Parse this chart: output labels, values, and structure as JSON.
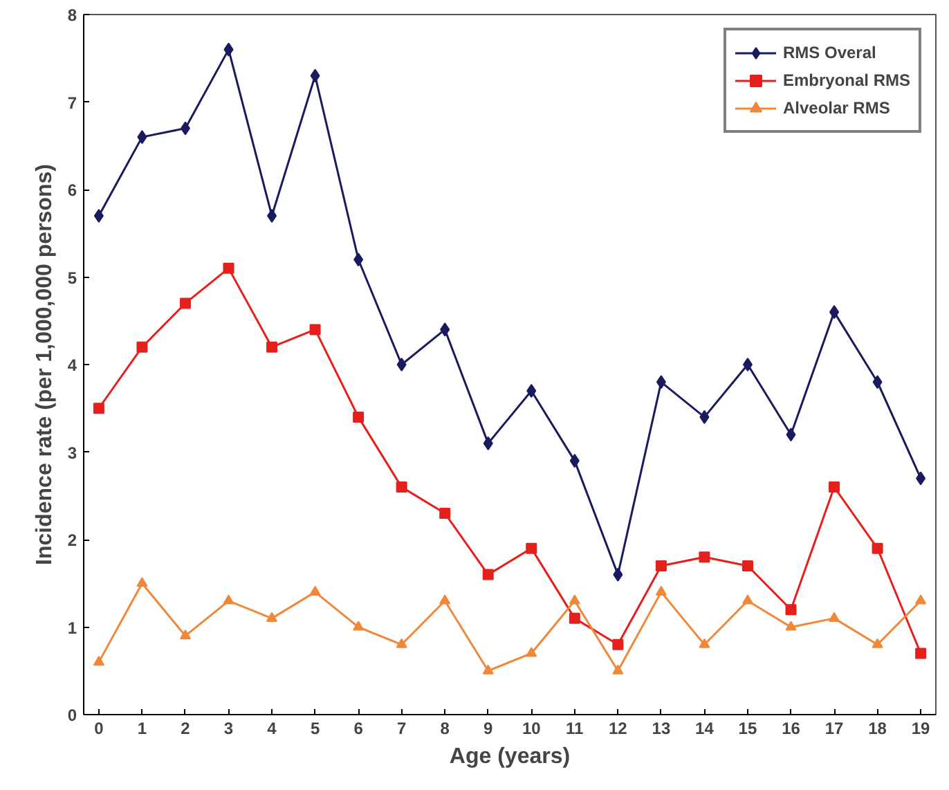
{
  "chart_data": {
    "type": "line",
    "xlabel": "Age (years)",
    "ylabel": "Incidence rate (per 1,000,000 persons)",
    "x": [
      0,
      1,
      2,
      3,
      4,
      5,
      6,
      7,
      8,
      9,
      10,
      11,
      12,
      13,
      14,
      15,
      16,
      17,
      18,
      19
    ],
    "series": [
      {
        "name": "RMS Overal",
        "color": "#1a1a5e",
        "marker": "diamond",
        "values": [
          5.7,
          6.6,
          6.7,
          7.6,
          5.7,
          7.3,
          5.2,
          4.0,
          4.4,
          3.1,
          3.7,
          2.9,
          1.6,
          3.8,
          3.4,
          4.0,
          3.2,
          4.6,
          3.8,
          2.7
        ]
      },
      {
        "name": "Embryonal RMS",
        "color": "#e5201c",
        "marker": "square",
        "values": [
          3.5,
          4.2,
          4.7,
          5.1,
          4.2,
          4.4,
          3.4,
          2.6,
          2.3,
          1.6,
          1.9,
          1.1,
          0.8,
          1.7,
          1.8,
          1.7,
          1.2,
          2.6,
          1.9,
          0.7
        ]
      },
      {
        "name": "Alveolar RMS",
        "color": "#f0883a",
        "marker": "triangle",
        "values": [
          0.6,
          1.5,
          0.9,
          1.3,
          1.1,
          1.4,
          1.0,
          0.8,
          1.3,
          0.5,
          0.7,
          1.3,
          0.5,
          1.4,
          0.8,
          1.3,
          1.0,
          1.1,
          0.8,
          1.3
        ]
      }
    ],
    "xlim": [
      -0.35,
      19.35
    ],
    "xticks": [
      0,
      1,
      2,
      3,
      4,
      5,
      6,
      7,
      8,
      9,
      10,
      11,
      12,
      13,
      14,
      15,
      16,
      17,
      18,
      19
    ],
    "ylim": [
      0,
      8
    ],
    "yticks": [
      0,
      1,
      2,
      3,
      4,
      5,
      6,
      7,
      8
    ],
    "grid": false,
    "legend": "top right",
    "line_style": "solid"
  }
}
